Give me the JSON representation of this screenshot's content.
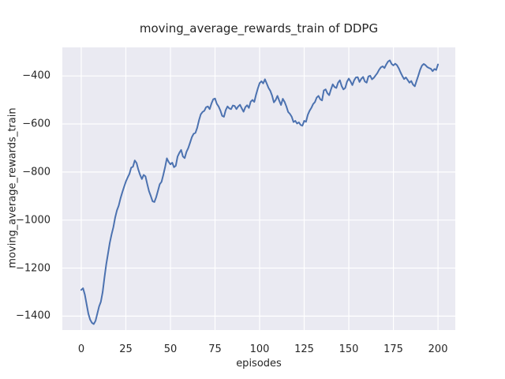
{
  "figure": {
    "title": "moving_average_rewards_train of DDPG",
    "xlabel": "episodes",
    "ylabel": "moving_average_rewards_train"
  },
  "chart_data": {
    "type": "line",
    "title": "moving_average_rewards_train of DDPG",
    "xlabel": "episodes",
    "ylabel": "moving_average_rewards_train",
    "grid": true,
    "legend": false,
    "xlim": [
      -10.6,
      209.7
    ],
    "ylim": [
      -1458,
      -281
    ],
    "xticks": [
      0,
      25,
      50,
      75,
      100,
      125,
      150,
      175,
      200
    ],
    "xtick_labels": [
      "0",
      "25",
      "50",
      "75",
      "100",
      "125",
      "150",
      "175",
      "200"
    ],
    "yticks": [
      -400,
      -600,
      -800,
      -1000,
      -1200,
      -1400
    ],
    "ytick_labels": [
      "−400",
      "−600",
      "−800",
      "−1000",
      "−1200",
      "−1400"
    ],
    "style": {
      "line_color": "#4c72b0",
      "plot_bg": "#eaeaf2",
      "grid_color": "#ffffff",
      "text_color": "#262626",
      "figure_bg": "#ffffff",
      "line_width": 2
    },
    "series": [
      {
        "name": "moving_average_rewards_train",
        "x_start": 0,
        "x_step": 1,
        "values": [
          -1291,
          -1284,
          -1310,
          -1350,
          -1390,
          -1415,
          -1428,
          -1433,
          -1420,
          -1390,
          -1360,
          -1340,
          -1300,
          -1240,
          -1185,
          -1140,
          -1095,
          -1060,
          -1030,
          -990,
          -960,
          -940,
          -910,
          -885,
          -862,
          -840,
          -823,
          -808,
          -782,
          -778,
          -752,
          -762,
          -790,
          -812,
          -829,
          -812,
          -818,
          -850,
          -880,
          -900,
          -922,
          -925,
          -905,
          -878,
          -851,
          -841,
          -812,
          -780,
          -743,
          -758,
          -768,
          -761,
          -780,
          -774,
          -736,
          -720,
          -708,
          -735,
          -742,
          -716,
          -700,
          -678,
          -655,
          -641,
          -637,
          -616,
          -585,
          -560,
          -550,
          -545,
          -530,
          -527,
          -538,
          -515,
          -497,
          -494,
          -516,
          -527,
          -544,
          -566,
          -570,
          -542,
          -527,
          -535,
          -538,
          -523,
          -525,
          -538,
          -527,
          -520,
          -535,
          -549,
          -530,
          -522,
          -533,
          -507,
          -500,
          -508,
          -478,
          -452,
          -430,
          -422,
          -431,
          -414,
          -432,
          -450,
          -462,
          -482,
          -510,
          -500,
          -483,
          -503,
          -521,
          -495,
          -508,
          -527,
          -550,
          -558,
          -570,
          -592,
          -587,
          -598,
          -593,
          -604,
          -607,
          -587,
          -591,
          -562,
          -545,
          -533,
          -517,
          -509,
          -490,
          -483,
          -497,
          -502,
          -460,
          -456,
          -472,
          -480,
          -456,
          -435,
          -446,
          -450,
          -428,
          -418,
          -442,
          -456,
          -450,
          -424,
          -411,
          -423,
          -438,
          -418,
          -406,
          -405,
          -425,
          -412,
          -404,
          -423,
          -428,
          -402,
          -399,
          -414,
          -408,
          -398,
          -388,
          -374,
          -364,
          -360,
          -367,
          -352,
          -340,
          -335,
          -350,
          -356,
          -349,
          -355,
          -368,
          -385,
          -400,
          -413,
          -406,
          -417,
          -428,
          -421,
          -436,
          -443,
          -420,
          -398,
          -374,
          -357,
          -350,
          -355,
          -363,
          -367,
          -370,
          -380,
          -371,
          -375,
          -352
        ]
      }
    ]
  }
}
